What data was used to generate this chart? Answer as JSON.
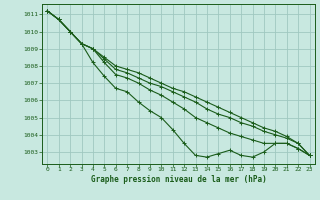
{
  "title": "Graphe pression niveau de la mer (hPa)",
  "bg_color": "#c8e8e0",
  "grid_color": "#a0c8c0",
  "line_color": "#1a5c1a",
  "spine_color": "#1a5c1a",
  "xlim": [
    -0.5,
    23.5
  ],
  "ylim": [
    1002.3,
    1011.6
  ],
  "yticks": [
    1003,
    1004,
    1005,
    1006,
    1007,
    1008,
    1009,
    1010,
    1011
  ],
  "xticks": [
    0,
    1,
    2,
    3,
    4,
    5,
    6,
    7,
    8,
    9,
    10,
    11,
    12,
    13,
    14,
    15,
    16,
    17,
    18,
    19,
    20,
    21,
    22,
    23
  ],
  "lines": [
    [
      1011.2,
      1010.7,
      1010.0,
      1009.3,
      1008.2,
      1007.4,
      1006.7,
      1006.5,
      1005.9,
      1005.4,
      1005.0,
      1004.3,
      1003.5,
      1002.8,
      1002.7,
      1002.9,
      1003.1,
      1002.8,
      1002.7,
      1003.0,
      1003.5,
      1003.5,
      1003.2,
      1002.8
    ],
    [
      1011.2,
      1010.7,
      1010.0,
      1009.3,
      1009.0,
      1008.2,
      1007.5,
      1007.3,
      1007.0,
      1006.6,
      1006.3,
      1005.9,
      1005.5,
      1005.0,
      1004.7,
      1004.4,
      1004.1,
      1003.9,
      1003.7,
      1003.5,
      1003.5,
      1003.5,
      1003.2,
      1002.8
    ],
    [
      1011.2,
      1010.7,
      1010.0,
      1009.3,
      1009.0,
      1008.4,
      1007.8,
      1007.6,
      1007.3,
      1007.0,
      1006.8,
      1006.5,
      1006.2,
      1005.9,
      1005.5,
      1005.2,
      1005.0,
      1004.7,
      1004.5,
      1004.2,
      1004.0,
      1003.8,
      1003.5,
      1002.8
    ],
    [
      1011.2,
      1010.7,
      1010.0,
      1009.3,
      1009.0,
      1008.5,
      1008.0,
      1007.8,
      1007.6,
      1007.3,
      1007.0,
      1006.7,
      1006.5,
      1006.2,
      1005.9,
      1005.6,
      1005.3,
      1005.0,
      1004.7,
      1004.4,
      1004.2,
      1003.9,
      1003.5,
      1002.8
    ]
  ]
}
